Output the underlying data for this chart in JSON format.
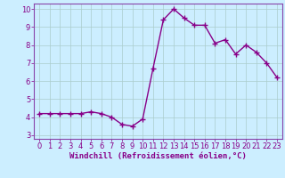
{
  "x": [
    0,
    1,
    2,
    3,
    4,
    5,
    6,
    7,
    8,
    9,
    10,
    11,
    12,
    13,
    14,
    15,
    16,
    17,
    18,
    19,
    20,
    21,
    22,
    23
  ],
  "y": [
    4.2,
    4.2,
    4.2,
    4.2,
    4.2,
    4.3,
    4.2,
    4.0,
    3.6,
    3.5,
    3.9,
    6.7,
    9.4,
    10.0,
    9.5,
    9.1,
    9.1,
    8.1,
    8.3,
    7.5,
    8.0,
    7.6,
    7.0,
    6.2
  ],
  "line_color": "#880088",
  "marker": "+",
  "marker_size": 4,
  "marker_lw": 1.0,
  "bg_color": "#cceeff",
  "grid_color": "#aacccc",
  "xlabel": "Windchill (Refroidissement éolien,°C)",
  "xlabel_fontsize": 6.5,
  "xlim": [
    -0.5,
    23.5
  ],
  "ylim": [
    2.8,
    10.3
  ],
  "yticks": [
    3,
    4,
    5,
    6,
    7,
    8,
    9,
    10
  ],
  "xticks": [
    0,
    1,
    2,
    3,
    4,
    5,
    6,
    7,
    8,
    9,
    10,
    11,
    12,
    13,
    14,
    15,
    16,
    17,
    18,
    19,
    20,
    21,
    22,
    23
  ],
  "tick_fontsize": 6.0,
  "line_width": 1.0,
  "figsize": [
    3.2,
    2.0
  ],
  "dpi": 100,
  "spine_color": "#8844aa"
}
